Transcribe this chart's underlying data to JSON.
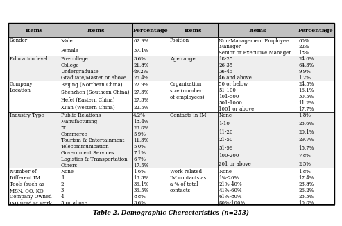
{
  "title": "Table 2. Demographic Characteristics (n=253)",
  "header_bg": "#c0c0c0",
  "row_bg_even": "#ffffff",
  "row_bg_odd": "#eeeeee",
  "col_props": [
    0.126,
    0.178,
    0.09,
    0.12,
    0.196,
    0.09
  ],
  "sections": [
    {
      "left_label": "Gender",
      "left_items": [
        "Male",
        "Female"
      ],
      "left_pcts": [
        "62.9%",
        "37.1%"
      ],
      "right_label": "Position",
      "right_items": [
        "Non-Management Employee",
        "Manager",
        "Senior or Executive Manager"
      ],
      "right_pcts": [
        "60%",
        "22%",
        "18%"
      ],
      "n_rows": 3
    },
    {
      "left_label": "Education level",
      "left_items": [
        "Pre-college",
        "College",
        "Undergraduate",
        "Graduate/Master or above"
      ],
      "left_pcts": [
        "3.6%",
        "21.8%",
        "49.2%",
        "25.4%"
      ],
      "right_label": "Age range",
      "right_items": [
        "18-25",
        "26-35",
        "36-45",
        "46 and above"
      ],
      "right_pcts": [
        "24.6%",
        "64.3%",
        "9.9%",
        "1.2%"
      ],
      "n_rows": 4
    },
    {
      "left_label": "Company\nLocation",
      "left_items": [
        "Beijing (Northern China)",
        "Shenzhen (Southern China)",
        "Hefei (Eastern China)",
        "Xi'an (Western China)"
      ],
      "left_pcts": [
        "22.9%",
        "27.3%",
        "27.3%",
        "22.5%"
      ],
      "right_label": "Organization\nsize (number\nof employees)",
      "right_items": [
        "50 or below",
        "51-100",
        "101-500",
        "501-1000",
        "1001 or above"
      ],
      "right_pcts": [
        "24.5%",
        "16.1%",
        "30.5%",
        "11.2%",
        "17.7%"
      ],
      "n_rows": 5
    },
    {
      "left_label": "Industry Type",
      "left_items": [
        "Public Relations",
        "Manufacturing",
        "IT",
        "Commerce",
        "Tourism & Entertainment",
        "Telecommunication",
        "Government Services",
        "Logistics & Transportation",
        "Others"
      ],
      "left_pcts": [
        "4.2%",
        "18.4%",
        "23.8%",
        "5.9%",
        "11.3%",
        "5.0%",
        "7.1%",
        "6.7%",
        "17.5%"
      ],
      "right_label": "Contacts in IM",
      "right_items": [
        "None",
        "1-10",
        "11-20",
        "21-50",
        "51-99",
        "100-200",
        "201 or above"
      ],
      "right_pcts": [
        "1.8%",
        "23.6%",
        "20.1%",
        "29.7%",
        "15.7%",
        "7.8%",
        "2.5%"
      ],
      "n_rows": 9
    },
    {
      "left_label": "Number of\nDifferent IM\nTools (such as\nMSN, QQ, KQ,\nCompany Owned\nIM) used at work",
      "left_items": [
        "None",
        "1",
        "2",
        "3",
        "4",
        "5 or above"
      ],
      "left_pcts": [
        "1.6%",
        "13.3%",
        "36.1%",
        "36.5%",
        "8.8%",
        "3.6%"
      ],
      "right_label": "Work related\nIM contacts as\na % of total\ncontacts",
      "right_items": [
        "None",
        "1%-20%",
        "21%-40%",
        "41%-60%",
        "61%-80%",
        "80%-100%"
      ],
      "right_pcts": [
        "1.8%",
        "17.4%",
        "23.8%",
        "26.2%",
        "23.3%",
        "10.8%"
      ],
      "n_rows": 6
    }
  ]
}
